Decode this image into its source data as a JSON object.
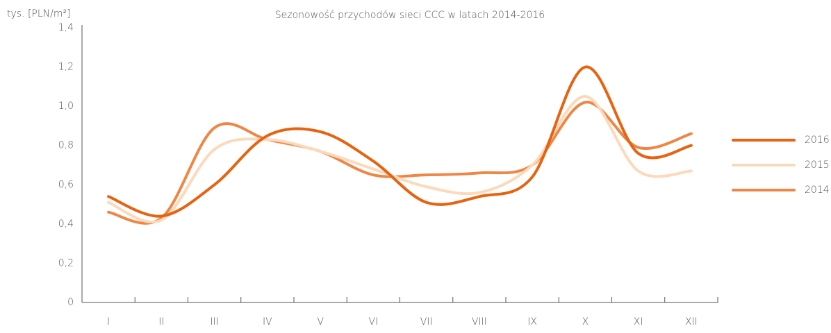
{
  "chart_data": {
    "type": "line",
    "title": "Sezonowość przychodów sieci CCC w latach 2014-2016",
    "y_label": "tys. [PLN/m²]",
    "categories": [
      "I",
      "II",
      "III",
      "IV",
      "V",
      "VI",
      "VII",
      "VIII",
      "IX",
      "X",
      "XI",
      "XII"
    ],
    "series": [
      {
        "name": "2016",
        "color": "#e8620f",
        "values": [
          0.54,
          0.44,
          0.6,
          0.85,
          0.87,
          0.72,
          0.51,
          0.54,
          0.64,
          1.2,
          0.76,
          0.8
        ]
      },
      {
        "name": "2015",
        "color": "#fcd9bb",
        "values": [
          0.51,
          0.42,
          0.78,
          0.83,
          0.77,
          0.68,
          0.59,
          0.56,
          0.7,
          1.05,
          0.67,
          0.67
        ]
      },
      {
        "name": "2014",
        "color": "#ee8745",
        "values": [
          0.46,
          0.43,
          0.89,
          0.83,
          0.77,
          0.65,
          0.65,
          0.66,
          0.7,
          1.02,
          0.79,
          0.86
        ]
      }
    ],
    "ylim": [
      0,
      1.4
    ],
    "yticks": [
      0,
      {
        "value": 0.2,
        "label": "0,2"
      },
      {
        "value": 0.4,
        "label": "0,4"
      },
      {
        "value": 0.6,
        "label": "0,6"
      },
      {
        "value": 0.8,
        "label": "0,8"
      },
      {
        "value": 1.0,
        "label": "1,0"
      },
      {
        "value": 1.2,
        "label": "1,2"
      },
      {
        "value": 1.4,
        "label": "1,4"
      }
    ],
    "grid": false,
    "legend": "right"
  }
}
